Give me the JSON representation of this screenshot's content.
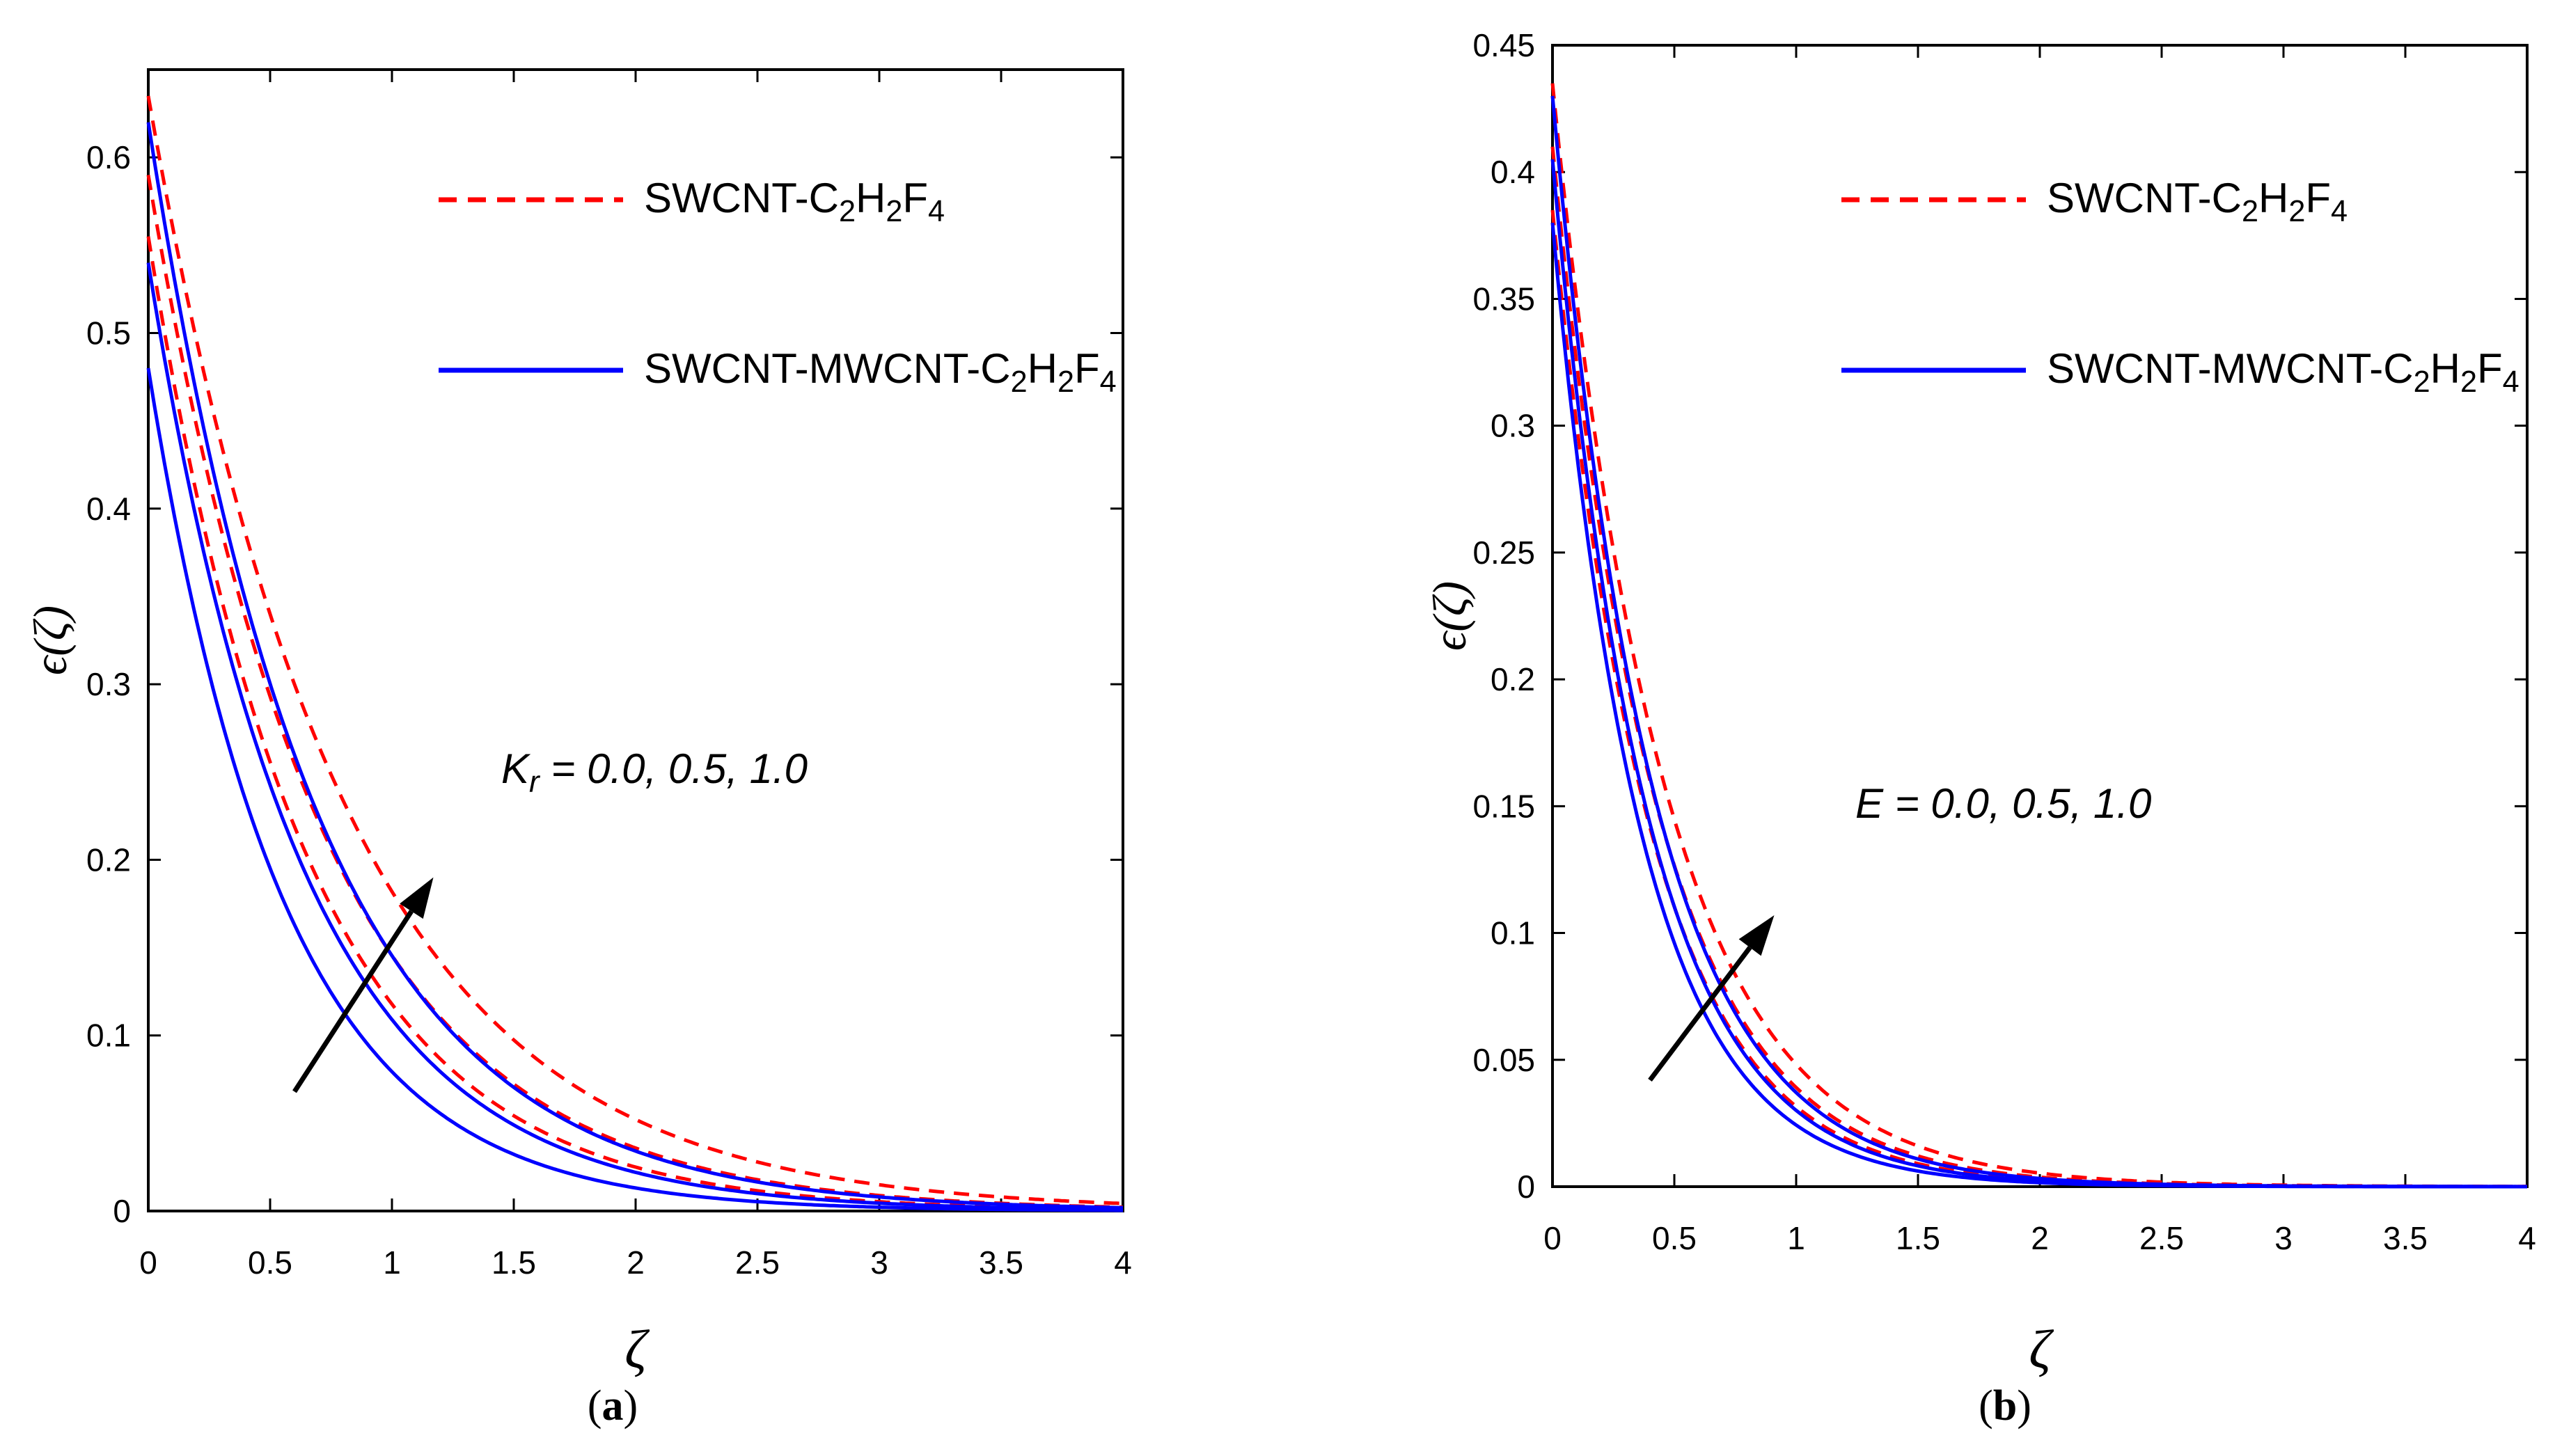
{
  "colors": {
    "red_series": "#ff0000",
    "blue_series": "#0000ff",
    "axis": "#000000",
    "arrow": "#000000"
  },
  "chart_data": [
    {
      "type": "line",
      "panel_label": "a",
      "xlabel": "ζ",
      "ylabel": "ϵ(ζ)",
      "xlim": [
        0,
        4
      ],
      "ylim": [
        0,
        0.65
      ],
      "xticks": [
        0,
        0.5,
        1,
        1.5,
        2,
        2.5,
        3,
        3.5,
        4
      ],
      "xtick_labels": [
        "0",
        "0.5",
        "1",
        "1.5",
        "2",
        "2.5",
        "3",
        "3.5",
        "4"
      ],
      "yticks": [
        0,
        0.1,
        0.2,
        0.3,
        0.4,
        0.5,
        0.6
      ],
      "ytick_labels": [
        "0",
        "0.1",
        "0.2",
        "0.3",
        "0.4",
        "0.5",
        "0.6"
      ],
      "legend": [
        {
          "label": "SWCNT-C",
          "subs": [
            "2",
            "H",
            "2",
            "F",
            "4"
          ],
          "style": "dashed",
          "color": "#ff0000"
        },
        {
          "label": "SWCNT-MWCNT-C",
          "subs": [
            "2",
            "H",
            "2",
            "F",
            "4"
          ],
          "style": "solid",
          "color": "#0000ff"
        }
      ],
      "annotation": {
        "symbol": "K",
        "subscript": "r",
        "text": " = 0.0, 0.5, 1.0"
      },
      "arrow": {
        "from": [
          0.6,
          0.068
        ],
        "to": [
          1.17,
          0.19
        ]
      },
      "series": [
        {
          "name": "SWCNT-C2H2F4 (param 0.0)",
          "style": "dashed",
          "color": "#ff0000",
          "y0": 0.555,
          "decay": 1.55
        },
        {
          "name": "SWCNT-C2H2F4 (param 0.5)",
          "style": "dashed",
          "color": "#ff0000",
          "y0": 0.59,
          "decay": 1.4
        },
        {
          "name": "SWCNT-C2H2F4 (param 1.0)",
          "style": "dashed",
          "color": "#ff0000",
          "y0": 0.635,
          "decay": 1.25
        },
        {
          "name": "SWCNT-MWCNT-C2H2F4 (param 0.0)",
          "style": "solid",
          "color": "#0000ff",
          "y0": 0.48,
          "decay": 1.8
        },
        {
          "name": "SWCNT-MWCNT-C2H2F4 (param 0.5)",
          "style": "solid",
          "color": "#0000ff",
          "y0": 0.54,
          "decay": 1.6
        },
        {
          "name": "SWCNT-MWCNT-C2H2F4 (param 1.0)",
          "style": "solid",
          "color": "#0000ff",
          "y0": 0.62,
          "decay": 1.45
        }
      ]
    },
    {
      "type": "line",
      "panel_label": "b",
      "xlabel": "ζ",
      "ylabel": "ϵ(ζ)",
      "xlim": [
        0,
        4
      ],
      "ylim": [
        0,
        0.45
      ],
      "xticks": [
        0,
        0.5,
        1,
        1.5,
        2,
        2.5,
        3,
        3.5,
        4
      ],
      "xtick_labels": [
        "0",
        "0.5",
        "1",
        "1.5",
        "2",
        "2.5",
        "3",
        "3.5",
        "4"
      ],
      "yticks": [
        0,
        0.05,
        0.1,
        0.15,
        0.2,
        0.25,
        0.3,
        0.35,
        0.4,
        0.45
      ],
      "ytick_labels": [
        "0",
        "0.05",
        "0.1",
        "0.15",
        "0.2",
        "0.25",
        "0.3",
        "0.35",
        "0.4",
        "0.45"
      ],
      "legend": [
        {
          "label": "SWCNT-C",
          "subs": [
            "2",
            "H",
            "2",
            "F",
            "4"
          ],
          "style": "dashed",
          "color": "#ff0000"
        },
        {
          "label": "SWCNT-MWCNT-C",
          "subs": [
            "2",
            "H",
            "2",
            "F",
            "4"
          ],
          "style": "solid",
          "color": "#0000ff"
        }
      ],
      "annotation": {
        "symbol": "E",
        "subscript": "",
        "text": " = 0.0, 0.5, 1.0"
      },
      "arrow": {
        "from": [
          0.4,
          0.042
        ],
        "to": [
          0.91,
          0.107
        ]
      },
      "series": [
        {
          "name": "SWCNT-C2H2F4 (param 0.0)",
          "style": "dashed",
          "color": "#ff0000",
          "y0": 0.385,
          "decay": 2.5
        },
        {
          "name": "SWCNT-C2H2F4 (param 0.5)",
          "style": "dashed",
          "color": "#ff0000",
          "y0": 0.41,
          "decay": 2.35
        },
        {
          "name": "SWCNT-C2H2F4 (param 1.0)",
          "style": "dashed",
          "color": "#ff0000",
          "y0": 0.435,
          "decay": 2.2
        },
        {
          "name": "SWCNT-MWCNT-C2H2F4 (param 0.0)",
          "style": "solid",
          "color": "#0000ff",
          "y0": 0.38,
          "decay": 2.75
        },
        {
          "name": "SWCNT-MWCNT-C2H2F4 (param 0.5)",
          "style": "solid",
          "color": "#0000ff",
          "y0": 0.405,
          "decay": 2.6
        },
        {
          "name": "SWCNT-MWCNT-C2H2F4 (param 1.0)",
          "style": "solid",
          "color": "#0000ff",
          "y0": 0.43,
          "decay": 2.45
        }
      ]
    }
  ]
}
